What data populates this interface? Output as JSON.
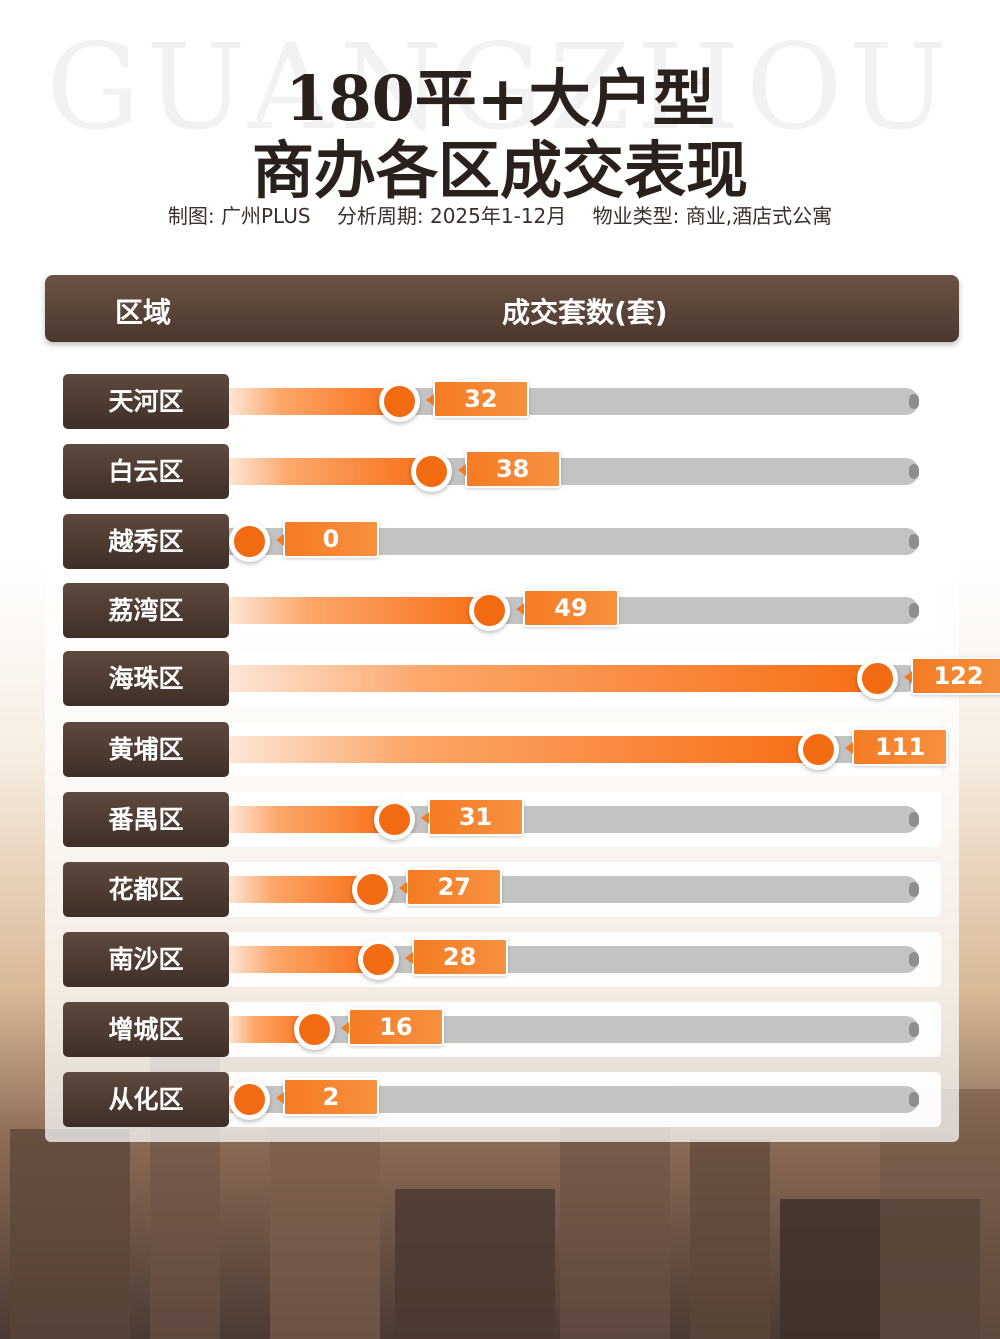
{
  "watermark": "GUANGZHOU",
  "title_line1": "180平+大户型",
  "title_line2": "商办各区成交表现",
  "subtitle": {
    "maker": "制图: 广州PLUS",
    "period": "分析周期: 2025年1-12月",
    "property_type": "物业类型: 商业,酒店式公寓"
  },
  "header": {
    "region_label": "区域",
    "count_label": "成交套数(套)"
  },
  "colors": {
    "accent": "#f26a12",
    "header_brown": "#5a4438",
    "track_gray": "#c3c3c3"
  },
  "chart_data": {
    "type": "bar",
    "orientation": "horizontal",
    "categories": [
      "天河区",
      "白云区",
      "越秀区",
      "荔湾区",
      "海珠区",
      "黄埔区",
      "番禺区",
      "花都区",
      "南沙区",
      "增城区",
      "从化区"
    ],
    "values": [
      32,
      38,
      0,
      49,
      122,
      111,
      31,
      27,
      28,
      16,
      2
    ],
    "xlim": [
      0,
      130
    ],
    "ylabel": "区域",
    "xlabel": "成交套数(套)"
  }
}
